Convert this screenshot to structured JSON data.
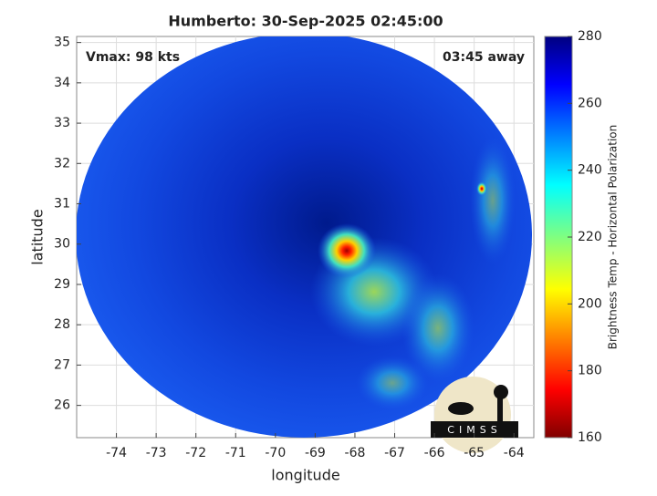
{
  "chart_data": {
    "type": "image",
    "title": "Humberto: 30-Sep-2025 02:45:00",
    "annotations": [
      "Vmax: 98 kts",
      "03:45 away"
    ],
    "x_label": "longitude",
    "y_label": "latitude",
    "xlim": [
      -75,
      -63.5
    ],
    "ylim": [
      25.2,
      35.15
    ],
    "xticks": [
      -74,
      -73,
      -72,
      -71,
      -70,
      -69,
      -68,
      -67,
      -66,
      -65,
      -64
    ],
    "yticks": [
      26,
      27,
      28,
      29,
      30,
      31,
      32,
      33,
      34,
      35
    ],
    "grid": true,
    "colorbar": {
      "label": "Brightness Temp - Horizontal Polarization",
      "lim": [
        160,
        280
      ],
      "ticks": [
        160,
        180,
        200,
        220,
        240,
        260,
        280
      ]
    },
    "logo_text": "CIMSS"
  }
}
